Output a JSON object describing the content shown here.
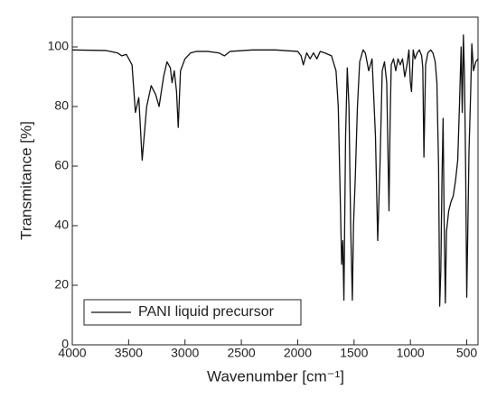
{
  "chart_data": {
    "type": "line",
    "xlabel": "Wavenumber [cm⁻¹]",
    "ylabel": "Transmitance [%]",
    "xlim": [
      4000,
      400
    ],
    "ylim": [
      0,
      110
    ],
    "xticks": [
      4000,
      3500,
      3000,
      2500,
      2000,
      1500,
      1000,
      500
    ],
    "yticks": [
      0,
      20,
      40,
      60,
      80,
      100
    ],
    "legend": "lower left",
    "series": [
      {
        "name": "PANI liquid precursor",
        "color": "#111111",
        "x": [
          4000,
          3700,
          3600,
          3560,
          3520,
          3470,
          3440,
          3410,
          3380,
          3340,
          3300,
          3260,
          3230,
          3190,
          3160,
          3130,
          3115,
          3095,
          3075,
          3060,
          3040,
          3000,
          2950,
          2900,
          2800,
          2700,
          2650,
          2600,
          2400,
          2200,
          2000,
          1970,
          1950,
          1920,
          1890,
          1860,
          1830,
          1800,
          1760,
          1700,
          1660,
          1640,
          1620,
          1610,
          1600,
          1590,
          1575,
          1560,
          1545,
          1530,
          1515,
          1505,
          1490,
          1470,
          1450,
          1420,
          1400,
          1370,
          1340,
          1310,
          1290,
          1270,
          1250,
          1230,
          1210,
          1190,
          1180,
          1170,
          1150,
          1130,
          1110,
          1090,
          1070,
          1050,
          1030,
          1013,
          1000,
          990,
          975,
          960,
          940,
          920,
          900,
          890,
          880,
          865,
          845,
          820,
          800,
          780,
          765,
          750,
          740,
          730,
          720,
          710,
          700,
          690,
          680,
          660,
          640,
          620,
          600,
          580,
          565,
          550,
          540,
          530,
          520,
          510,
          500,
          490,
          480,
          465,
          455,
          440,
          420,
          400
        ],
        "values": [
          99,
          98.8,
          98,
          97,
          97.5,
          94,
          78,
          83,
          62,
          80,
          87,
          84,
          80,
          90,
          95,
          93,
          88,
          92,
          85,
          73,
          92,
          96,
          98,
          98.5,
          98.5,
          98,
          97,
          98.5,
          99,
          99,
          98.5,
          97,
          94,
          98,
          96,
          98,
          96,
          98.5,
          98,
          97,
          92,
          80,
          45,
          27,
          35,
          15,
          70,
          93,
          80,
          40,
          15,
          40,
          55,
          80,
          95,
          99,
          98,
          92,
          96,
          70,
          35,
          60,
          92,
          95,
          88,
          45,
          75,
          94,
          96,
          92,
          96,
          94,
          96,
          90,
          94,
          99,
          88,
          85,
          99,
          96,
          98,
          99,
          97,
          93,
          63,
          94,
          98,
          99,
          98,
          95,
          88,
          60,
          13,
          25,
          55,
          76,
          40,
          14,
          38,
          45,
          48,
          50,
          55,
          62,
          80,
          100,
          78,
          104,
          90,
          60,
          16,
          40,
          65,
          85,
          101,
          92,
          95,
          96
        ]
      }
    ]
  }
}
